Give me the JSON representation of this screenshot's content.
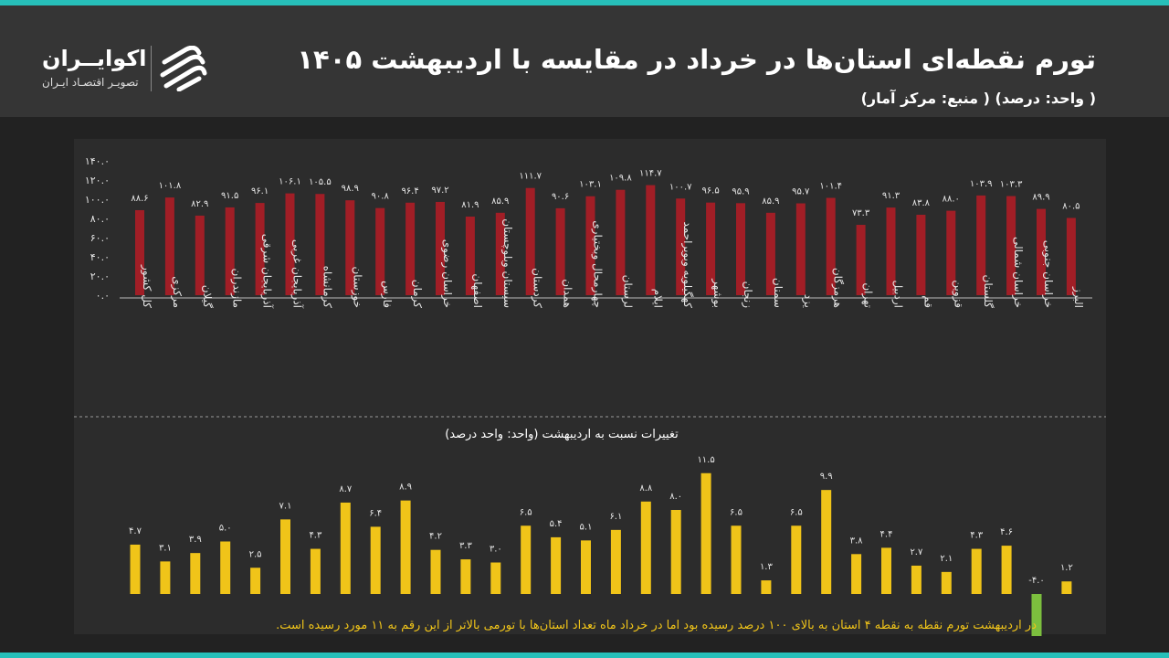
{
  "header": {
    "title": "تورم نقطه‌ای استان‌ها در خرداد در مقایسه با اردیبهشت ۱۴۰۵",
    "subtitle": "( واحد: درصد) ( منبع: مرکز آمار)"
  },
  "logo": {
    "name": "اکوایــران",
    "tagline": "تصویـر اقتصـاد ایـران",
    "icon": "ekoiran-logo-icon"
  },
  "colors": {
    "background": "#222222",
    "header": "#353535",
    "panel": "#2c2c2c",
    "accent": "#27bfb9",
    "top_bar": "#a11e26",
    "bottom_bar": "#f0c419",
    "negative_bar": "#7cbf3e",
    "note_text": "#f0c419"
  },
  "chart_data": [
    {
      "type": "bar",
      "categories": [
        "کل کشور",
        "مرکزی",
        "گیلان",
        "مازندران",
        "آذربایجان شرقی",
        "آذربایجان غربی",
        "کرمانشاه",
        "خوزستان",
        "فارس",
        "کرمان",
        "خراسان رضوی",
        "اصفهان",
        "سیستان وبلوچستان",
        "کردستان",
        "همدان",
        "چهارمحال وبختیاری",
        "لرستان",
        "ایلام",
        "کهگیلویه وبویراحمد",
        "بوشهر",
        "زنجان",
        "سمنان",
        "یزد",
        "هرمزگان",
        "تهران",
        "اردبیل",
        "قم",
        "قزوین",
        "گلستان",
        "خراسان شمالی",
        "خراسان جنوبی",
        "البرز"
      ],
      "values": [
        88.6,
        101.8,
        82.9,
        91.5,
        96.1,
        106.1,
        105.5,
        98.9,
        90.8,
        96.4,
        97.2,
        81.9,
        85.9,
        111.7,
        90.6,
        103.1,
        109.8,
        114.7,
        100.7,
        96.5,
        95.9,
        85.9,
        95.7,
        101.4,
        73.3,
        91.3,
        83.8,
        88.0,
        103.9,
        103.3,
        89.9,
        80.5
      ],
      "value_labels": [
        "۸۸.۶",
        "۱۰۱.۸",
        "۸۲.۹",
        "۹۱.۵",
        "۹۶.۱",
        "۱۰۶.۱",
        "۱۰۵.۵",
        "۹۸.۹",
        "۹۰.۸",
        "۹۶.۴",
        "۹۷.۲",
        "۸۱.۹",
        "۸۵.۹",
        "۱۱۱.۷",
        "۹۰.۶",
        "۱۰۳.۱",
        "۱۰۹.۸",
        "۱۱۴.۷",
        "۱۰۰.۷",
        "۹۶.۵",
        "۹۵.۹",
        "۸۵.۹",
        "۹۵.۷",
        "۱۰۱.۴",
        "۷۳.۳",
        "۹۱.۳",
        "۸۳.۸",
        "۸۸.۰",
        "۱۰۳.۹",
        "۱۰۳.۳",
        "۸۹.۹",
        "۸۰.۵"
      ],
      "y_ticks": [
        0,
        20,
        40,
        60,
        80,
        100,
        120,
        140
      ],
      "y_tick_labels": [
        "۰.۰",
        "۲۰.۰",
        "۴۰.۰",
        "۶۰.۰",
        "۸۰.۰",
        "۱۰۰.۰",
        "۱۲۰.۰",
        "۱۴۰.۰"
      ],
      "ylim": [
        0,
        140
      ],
      "grid": false
    },
    {
      "type": "bar",
      "title": "تغییرات نسبت به اردیبهشت (واحد: واحد درصد)",
      "categories": [
        "کل کشور",
        "مرکزی",
        "گیلان",
        "مازندران",
        "آذربایجان شرقی",
        "آذربایجان غربی",
        "کرمانشاه",
        "خوزستان",
        "فارس",
        "کرمان",
        "خراسان رضوی",
        "اصفهان",
        "سیستان وبلوچستان",
        "کردستان",
        "همدان",
        "چهارمحال وبختیاری",
        "لرستان",
        "ایلام",
        "کهگیلویه وبویراحمد",
        "بوشهر",
        "زنجان",
        "سمنان",
        "یزد",
        "هرمزگان",
        "تهران",
        "اردبیل",
        "قم",
        "قزوین",
        "گلستان",
        "خراسان شمالی",
        "خراسان جنوبی",
        "البرز"
      ],
      "values": [
        4.7,
        3.1,
        3.9,
        5.0,
        2.5,
        7.1,
        4.3,
        8.7,
        6.4,
        8.9,
        4.2,
        3.3,
        3.0,
        6.5,
        5.4,
        5.1,
        6.1,
        8.8,
        8.0,
        11.5,
        6.5,
        1.3,
        6.5,
        9.9,
        3.8,
        4.4,
        2.7,
        2.1,
        4.3,
        4.6,
        -4.0,
        1.2
      ],
      "value_labels": [
        "۴.۷",
        "۳.۱",
        "۳.۹",
        "۵.۰",
        "۲.۵",
        "۷.۱",
        "۴.۳",
        "۸.۷",
        "۶.۴",
        "۸.۹",
        "۴.۲",
        "۳.۳",
        "۳.۰",
        "۶.۵",
        "۵.۴",
        "۵.۱",
        "۶.۱",
        "۸.۸",
        "۸.۰",
        "۱۱.۵",
        "۶.۵",
        "۱.۳",
        "۶.۵",
        "۹.۹",
        "۳.۸",
        "۴.۴",
        "۲.۷",
        "۲.۱",
        "۴.۳",
        "۴.۶",
        "-۴.۰",
        "۱.۲"
      ],
      "grid": false
    }
  ],
  "note": "در اردیبهشت تورم نقطه به نقطه ۴ استان به بالای ۱۰۰ درصد رسیده بود اما در خرداد ماه تعداد استان‌ها با تورمی بالاتر از این رقم به ۱۱ مورد رسیده است."
}
